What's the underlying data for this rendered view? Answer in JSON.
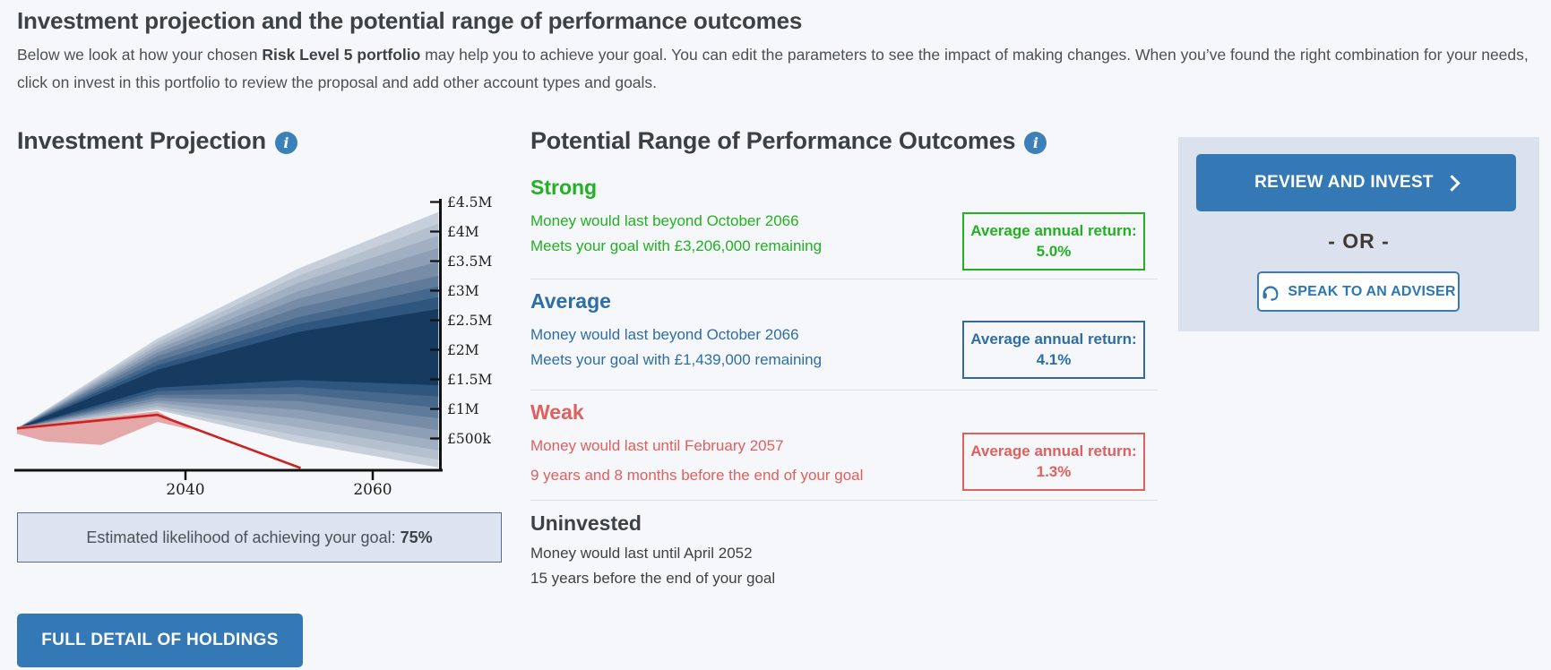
{
  "page": {
    "title": "Investment projection and the potential range of performance outcomes",
    "intro_before": "Below we look at how your chosen ",
    "intro_bold": "Risk Level 5 portfolio",
    "intro_after": " may help you to achieve your goal. You can edit the parameters to see the impact of making changes. When you’ve found the right combination for your needs, click on invest in this portfolio to review the proposal and add other account types and goals."
  },
  "projection": {
    "heading": "Investment Projection",
    "info_icon": "i",
    "likelihood_label": "Estimated likelihood of achieving your goal:",
    "likelihood_value": "75%",
    "holdings_button": "FULL DETAIL OF HOLDINGS"
  },
  "chart_data": {
    "type": "area",
    "title": "Investment Projection fan chart",
    "x_range": [
      2022,
      2067
    ],
    "x_ticks": [
      2040,
      2060
    ],
    "y_ticks": [
      {
        "v": 0.5,
        "label": "£500k"
      },
      {
        "v": 1.0,
        "label": "£1M"
      },
      {
        "v": 1.5,
        "label": "£1.5M"
      },
      {
        "v": 2.0,
        "label": "£2M"
      },
      {
        "v": 2.5,
        "label": "£2.5M"
      },
      {
        "v": 3.0,
        "label": "£3M"
      },
      {
        "v": 3.5,
        "label": "£3.5M"
      },
      {
        "v": 4.0,
        "label": "£4M"
      },
      {
        "v": 4.5,
        "label": "£4.5M"
      }
    ],
    "unit": "GBP millions",
    "origin": {
      "year": 2022,
      "value": 0.67
    },
    "band_years": [
      2037,
      2052,
      2067
    ],
    "bands": [
      {
        "color": "#c7cfda",
        "top": [
          2.19,
          3.37,
          4.33
        ],
        "bottom": [
          0.98,
          0.43,
          0.01
        ]
      },
      {
        "color": "#b4c0ce",
        "top": [
          2.13,
          3.25,
          4.13
        ],
        "bottom": [
          1.01,
          0.55,
          0.14
        ]
      },
      {
        "color": "#a1afc2",
        "top": [
          2.07,
          3.13,
          3.93
        ],
        "bottom": [
          1.05,
          0.69,
          0.3
        ]
      },
      {
        "color": "#8d9eb5",
        "top": [
          2.01,
          2.99,
          3.72
        ],
        "bottom": [
          1.1,
          0.84,
          0.46
        ]
      },
      {
        "color": "#778da7",
        "top": [
          1.95,
          2.86,
          3.49
        ],
        "bottom": [
          1.14,
          0.99,
          0.64
        ]
      },
      {
        "color": "#5f7b99",
        "top": [
          1.89,
          2.71,
          3.25
        ],
        "bottom": [
          1.19,
          1.13,
          0.84
        ]
      },
      {
        "color": "#46688c",
        "top": [
          1.81,
          2.55,
          3.07
        ],
        "bottom": [
          1.24,
          1.25,
          1.02
        ]
      },
      {
        "color": "#2e567e",
        "top": [
          1.74,
          2.43,
          2.89
        ],
        "bottom": [
          1.3,
          1.37,
          1.21
        ]
      },
      {
        "color": "#173a60",
        "top": [
          1.66,
          2.3,
          2.69
        ],
        "bottom": [
          1.36,
          1.49,
          1.4
        ]
      }
    ],
    "uninvested_line": {
      "color": "#cc2222",
      "points": [
        [
          2022,
          0.67
        ],
        [
          2037,
          0.9
        ],
        [
          2052.3,
          0.0
        ]
      ]
    },
    "uninvested_band": {
      "color": "#e29a9a",
      "points": [
        [
          2022,
          0.7
        ],
        [
          2037,
          0.96
        ],
        [
          2040.8,
          0.64
        ],
        [
          2037,
          0.78
        ],
        [
          2031,
          0.39
        ],
        [
          2025,
          0.45
        ],
        [
          2022,
          0.58
        ]
      ]
    }
  },
  "outcomes": {
    "heading": "Potential Range of Performance Outcomes",
    "sections": [
      {
        "name": "Strong",
        "line1": "Money would last beyond October 2066",
        "line2": "Meets your goal with £3,206,000 remaining",
        "return_label": "Average annual return:",
        "return_value": "5.0%",
        "color": "#21b121"
      },
      {
        "name": "Average",
        "line1": "Money would last beyond October 2066",
        "line2": "Meets your goal with £1,439,000 remaining",
        "return_label": "Average annual return:",
        "return_value": "4.1%",
        "color": "#2e6ea6"
      },
      {
        "name": "Weak",
        "line1": "Money would last until February 2057",
        "line2": "9 years and 8 months before the end of your goal",
        "return_label": "Average annual return:",
        "return_value": "1.3%",
        "color": "#e0605e"
      },
      {
        "name": "Uninvested",
        "line1": "Money would last until April 2052",
        "line2": "15 years before the end of your goal",
        "color": "#3d4247"
      }
    ]
  },
  "actions": {
    "review_button": "REVIEW AND INVEST",
    "or_text": "- OR -",
    "adviser_button": "SPEAK TO AN ADVISER"
  },
  "colors": {
    "page_bg": "#f5f7fa",
    "panel_bg": "#dce2ed",
    "accent_blue": "#3479b6",
    "strong_green": "#21b121",
    "average_blue": "#2e6ea6",
    "weak_red": "#e0605e",
    "likelihood_bg": "#dde3f0"
  }
}
